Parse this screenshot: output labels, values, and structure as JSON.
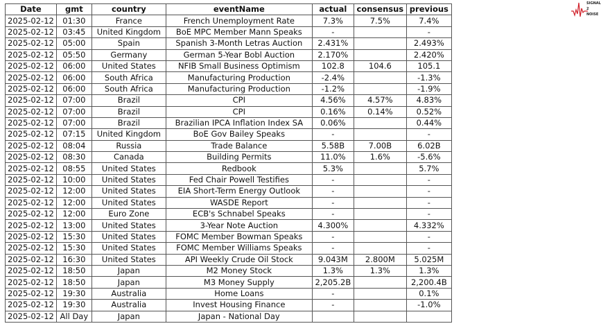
{
  "logo": {
    "lines": [
      "SIGNAL",
      "2",
      "NOISE"
    ],
    "accent": "#d0202a"
  },
  "columns": [
    "Date",
    "gmt",
    "country",
    "eventName",
    "actual",
    "consensus",
    "previous"
  ],
  "rows": [
    [
      "2025-02-12",
      "01:30",
      "France",
      "French Unemployment Rate",
      "7.3%",
      "7.5%",
      "7.4%"
    ],
    [
      "2025-02-12",
      "03:45",
      "United Kingdom",
      "BoE MPC Member Mann Speaks",
      "-",
      "",
      "-"
    ],
    [
      "2025-02-12",
      "05:00",
      "Spain",
      "Spanish 3-Month Letras Auction",
      "2.431%",
      "",
      "2.493%"
    ],
    [
      "2025-02-12",
      "05:50",
      "Germany",
      "German 5-Year Bobl Auction",
      "2.170%",
      "",
      "2.420%"
    ],
    [
      "2025-02-12",
      "06:00",
      "United States",
      "NFIB Small Business Optimism",
      "102.8",
      "104.6",
      "105.1"
    ],
    [
      "2025-02-12",
      "06:00",
      "South Africa",
      "Manufacturing Production",
      "-2.4%",
      "",
      "-1.3%"
    ],
    [
      "2025-02-12",
      "06:00",
      "South Africa",
      "Manufacturing Production",
      "-1.2%",
      "",
      "-1.9%"
    ],
    [
      "2025-02-12",
      "07:00",
      "Brazil",
      "CPI",
      "4.56%",
      "4.57%",
      "4.83%"
    ],
    [
      "2025-02-12",
      "07:00",
      "Brazil",
      "CPI",
      "0.16%",
      "0.14%",
      "0.52%"
    ],
    [
      "2025-02-12",
      "07:00",
      "Brazil",
      "Brazilian IPCA Inflation Index SA",
      "0.06%",
      "",
      "0.44%"
    ],
    [
      "2025-02-12",
      "07:15",
      "United Kingdom",
      "BoE Gov Bailey Speaks",
      "-",
      "",
      "-"
    ],
    [
      "2025-02-12",
      "08:04",
      "Russia",
      "Trade Balance",
      "5.58B",
      "7.00B",
      "6.02B"
    ],
    [
      "2025-02-12",
      "08:30",
      "Canada",
      "Building Permits",
      "11.0%",
      "1.6%",
      "-5.6%"
    ],
    [
      "2025-02-12",
      "08:55",
      "United States",
      "Redbook",
      "5.3%",
      "",
      "5.7%"
    ],
    [
      "2025-02-12",
      "10:00",
      "United States",
      "Fed Chair Powell Testifies",
      "-",
      "",
      "-"
    ],
    [
      "2025-02-12",
      "12:00",
      "United States",
      "EIA Short-Term Energy Outlook",
      "-",
      "",
      "-"
    ],
    [
      "2025-02-12",
      "12:00",
      "United States",
      "WASDE Report",
      "-",
      "",
      "-"
    ],
    [
      "2025-02-12",
      "12:00",
      "Euro Zone",
      "ECB's Schnabel Speaks",
      "-",
      "",
      "-"
    ],
    [
      "2025-02-12",
      "13:00",
      "United States",
      "3-Year Note Auction",
      "4.300%",
      "",
      "4.332%"
    ],
    [
      "2025-02-12",
      "15:30",
      "United States",
      "FOMC Member Bowman Speaks",
      "-",
      "",
      "-"
    ],
    [
      "2025-02-12",
      "15:30",
      "United States",
      "FOMC Member Williams Speaks",
      "-",
      "",
      "-"
    ],
    [
      "2025-02-12",
      "16:30",
      "United States",
      "API Weekly Crude Oil Stock",
      "9.043M",
      "2.800M",
      "5.025M"
    ],
    [
      "2025-02-12",
      "18:50",
      "Japan",
      "M2 Money Stock",
      "1.3%",
      "1.3%",
      "1.3%"
    ],
    [
      "2025-02-12",
      "18:50",
      "Japan",
      "M3 Money Supply",
      "2,205.2B",
      "",
      "2,200.4B"
    ],
    [
      "2025-02-12",
      "19:30",
      "Australia",
      "Home Loans",
      "-",
      "",
      "0.1%"
    ],
    [
      "2025-02-12",
      "19:30",
      "Australia",
      "Invest Housing Finance",
      "-",
      "",
      "-1.0%"
    ],
    [
      "2025-02-12",
      "All Day",
      "Japan",
      "Japan - National Day",
      "",
      "",
      ""
    ]
  ]
}
